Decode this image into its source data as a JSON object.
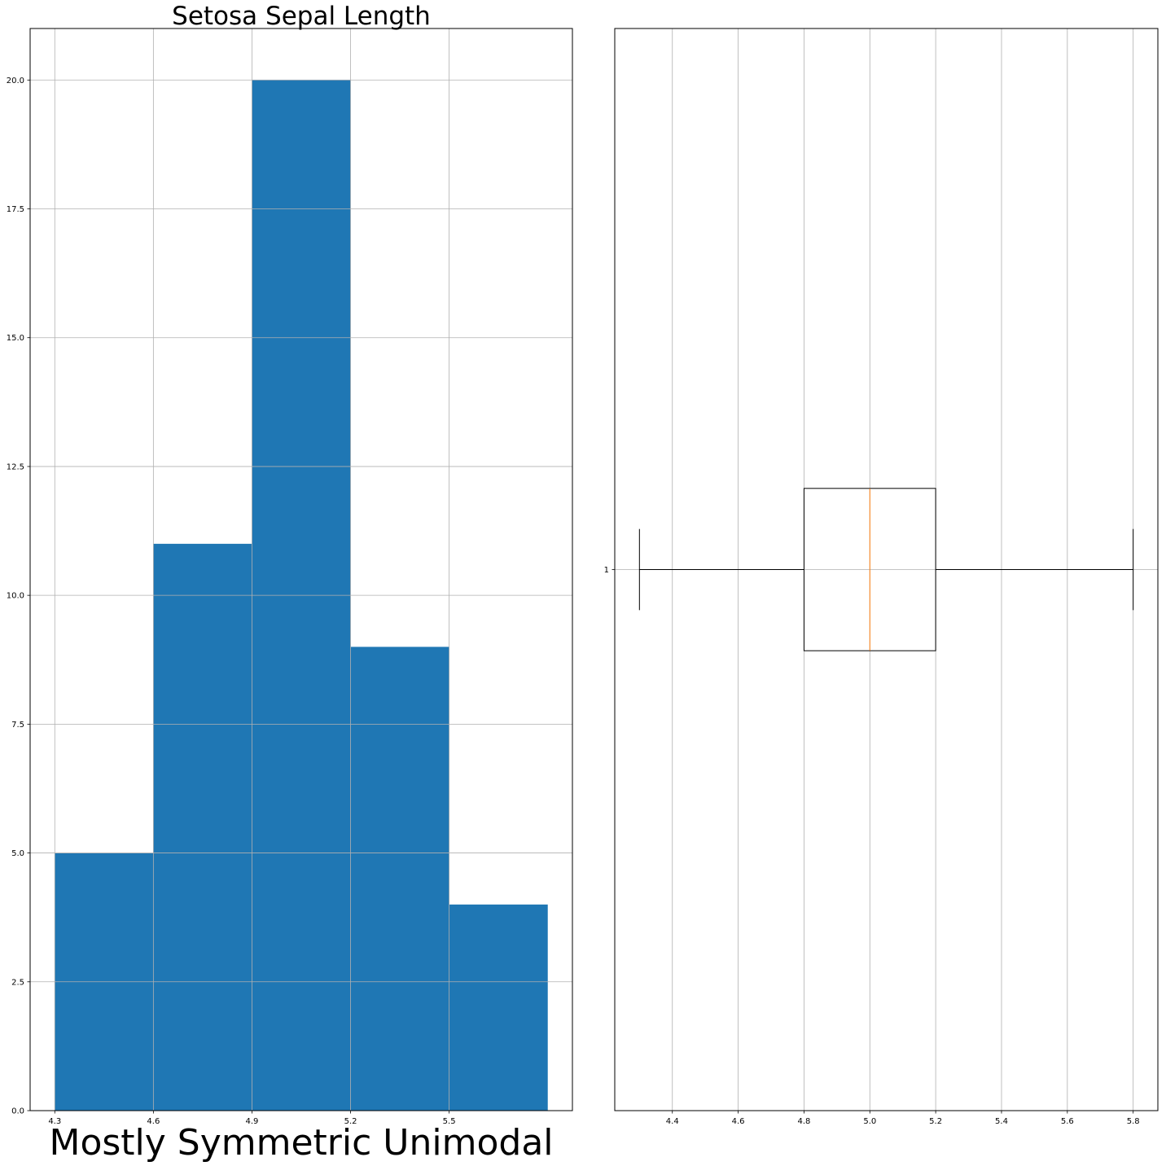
{
  "chart_data": [
    {
      "type": "histogram",
      "title": "Setosa Sepal Length",
      "xlabel": "Mostly Symmetric Unimodal",
      "ylabel": "",
      "bins": [
        {
          "start": 4.3,
          "end": 4.6,
          "count": 5
        },
        {
          "start": 4.6,
          "end": 4.9,
          "count": 11
        },
        {
          "start": 4.9,
          "end": 5.2,
          "count": 20
        },
        {
          "start": 5.2,
          "end": 5.5,
          "count": 9
        },
        {
          "start": 5.5,
          "end": 5.8,
          "count": 4
        }
      ],
      "xticks": [
        "4.3",
        "4.6",
        "4.9",
        "5.2",
        "5.5"
      ],
      "yticks": [
        "0.0",
        "2.5",
        "5.0",
        "7.5",
        "10.0",
        "12.5",
        "15.0",
        "17.5",
        "20.0"
      ],
      "xlim": [
        4.225,
        5.875
      ],
      "ylim": [
        0,
        21
      ],
      "grid": true,
      "bar_color": "#1f77b4"
    },
    {
      "type": "boxplot",
      "orientation": "horizontal",
      "box": {
        "whisker_low": 4.3,
        "q1": 4.8,
        "median": 5.0,
        "q3": 5.2,
        "whisker_high": 5.8
      },
      "xticks": [
        "4.4",
        "4.6",
        "4.8",
        "5.0",
        "5.2",
        "5.4",
        "5.6",
        "5.8"
      ],
      "yticks": [
        "1"
      ],
      "xlim": [
        4.225,
        5.875
      ],
      "grid": true,
      "median_color": "#ff7f0e"
    }
  ]
}
